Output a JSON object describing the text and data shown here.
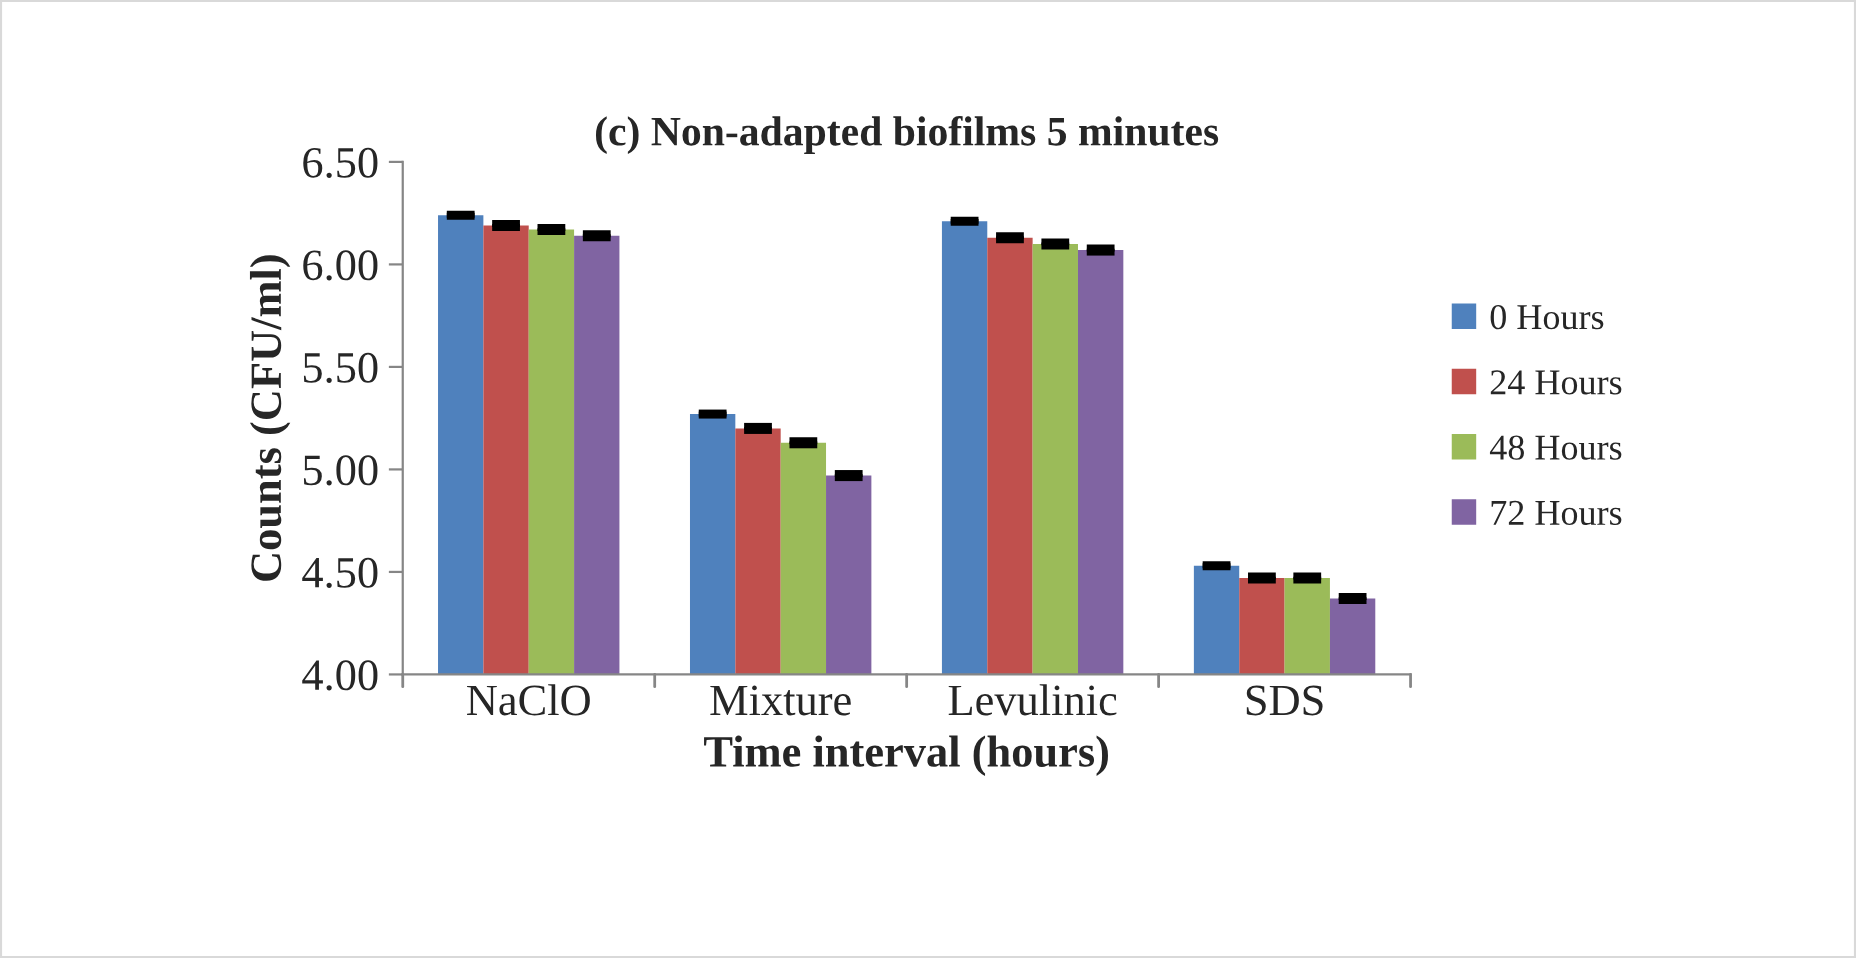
{
  "chart_data": {
    "type": "bar",
    "title": "(c) Non-adapted biofilms 5 minutes",
    "xlabel": "Time interval (hours)",
    "ylabel": "Counts (CFU/ml)",
    "categories": [
      "NaClO",
      "Mixture",
      "Levulinic",
      "SDS"
    ],
    "series": [
      {
        "name": "0 Hours",
        "color": "#4f81bd",
        "values": [
          6.24,
          5.27,
          6.21,
          4.53
        ],
        "errors": [
          0.005,
          0.005,
          0.005,
          0.005
        ]
      },
      {
        "name": "24 Hours",
        "color": "#c0504d",
        "values": [
          6.19,
          5.2,
          6.13,
          4.47
        ],
        "errors": [
          0.01,
          0.01,
          0.01,
          0.01
        ]
      },
      {
        "name": "48 Hours",
        "color": "#9bbb59",
        "values": [
          6.17,
          5.13,
          6.1,
          4.47
        ],
        "errors": [
          0.01,
          0.01,
          0.01,
          0.01
        ]
      },
      {
        "name": "72 Hours",
        "color": "#8064a2",
        "values": [
          6.14,
          4.97,
          6.07,
          4.37
        ],
        "errors": [
          0.01,
          0.01,
          0.01,
          0.01
        ]
      }
    ],
    "ylim": [
      4.0,
      6.5
    ],
    "yticks": [
      {
        "value": 4.0,
        "label": "4.00"
      },
      {
        "value": 4.5,
        "label": "4.50"
      },
      {
        "value": 5.0,
        "label": "5.00"
      },
      {
        "value": 5.5,
        "label": "5.50"
      },
      {
        "value": 6.0,
        "label": "6.00"
      },
      {
        "value": 6.5,
        "label": "6.50"
      }
    ],
    "grid": false,
    "legend": "right"
  }
}
